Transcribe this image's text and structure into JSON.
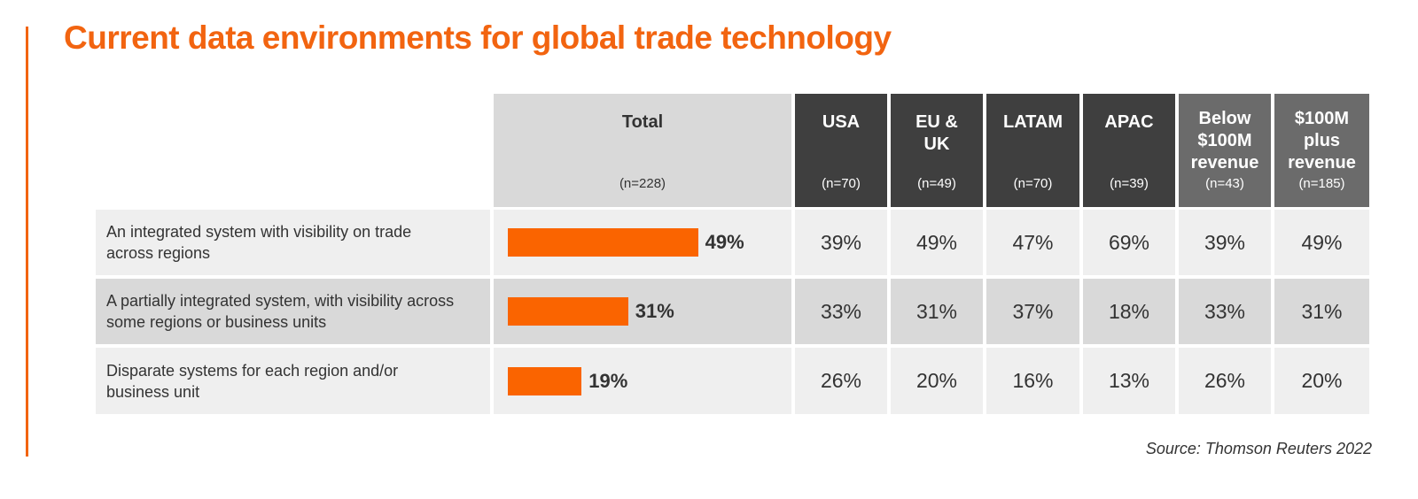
{
  "title": "Current data environments for global trade technology",
  "source": "Source: Thomson Reuters 2022",
  "colors": {
    "accent": "#fa6400",
    "region_header": "#3f3f3f",
    "revenue_header": "#6b6b6b",
    "total_header": "#d9d9d9"
  },
  "chart_data": {
    "type": "table",
    "title": "Current data environments for global trade technology",
    "columns": [
      {
        "label": "Total",
        "n": "(n=228)",
        "group": "total"
      },
      {
        "label": "USA",
        "n": "(n=70)",
        "group": "region"
      },
      {
        "label": "EU & UK",
        "n": "(n=49)",
        "group": "region"
      },
      {
        "label": "LATAM",
        "n": "(n=70)",
        "group": "region"
      },
      {
        "label": "APAC",
        "n": "(n=39)",
        "group": "region"
      },
      {
        "label": "Below $100M revenue",
        "n": "(n=43)",
        "group": "revenue"
      },
      {
        "label": "$100M plus revenue",
        "n": "(n=185)",
        "group": "revenue"
      }
    ],
    "rows": [
      {
        "label": "An integrated system with visibility on trade across regions",
        "total": 49,
        "total_label": "49%",
        "values": [
          "39%",
          "49%",
          "47%",
          "69%",
          "39%",
          "49%"
        ]
      },
      {
        "label": "A partially integrated system, with visibility across some regions or business units",
        "total": 31,
        "total_label": "31%",
        "values": [
          "33%",
          "31%",
          "37%",
          "18%",
          "33%",
          "31%"
        ]
      },
      {
        "label": "Disparate systems for each region and/or business unit",
        "total": 19,
        "total_label": "19%",
        "values": [
          "26%",
          "20%",
          "16%",
          "13%",
          "26%",
          "20%"
        ]
      }
    ]
  }
}
